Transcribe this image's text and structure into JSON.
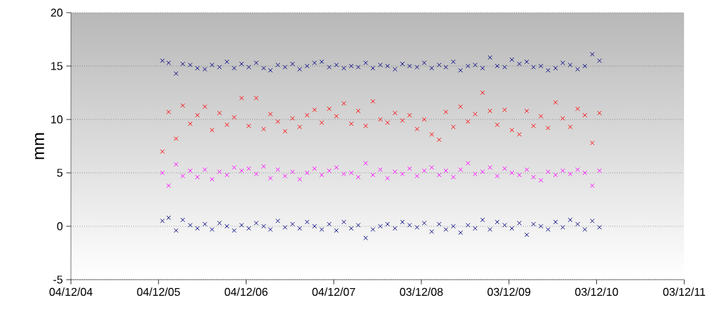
{
  "chart_data": {
    "type": "scatter",
    "ylabel": "mm",
    "marker": "cross",
    "grid": "y",
    "xlim": [
      "2004-12-04",
      "2011-12-03"
    ],
    "xticks": [
      {
        "value": "2004-12-04",
        "label": "04/12/04"
      },
      {
        "value": "2005-12-04",
        "label": "04/12/05"
      },
      {
        "value": "2006-12-04",
        "label": "04/12/06"
      },
      {
        "value": "2007-12-04",
        "label": "04/12/07"
      },
      {
        "value": "2008-12-03",
        "label": "03/12/08"
      },
      {
        "value": "2009-12-03",
        "label": "03/12/09"
      },
      {
        "value": "2010-12-03",
        "label": "03/12/10"
      },
      {
        "value": "2011-12-03",
        "label": "03/12/11"
      }
    ],
    "ylim": [
      -5,
      20
    ],
    "yticks": [
      -5,
      0,
      5,
      10,
      15,
      20
    ],
    "x": [
      "2005-12-20",
      "2006-01-15",
      "2006-02-15",
      "2006-03-15",
      "2006-04-15",
      "2006-05-15",
      "2006-06-15",
      "2006-07-15",
      "2006-08-15",
      "2006-09-15",
      "2006-10-15",
      "2006-11-15",
      "2006-12-15",
      "2007-01-15",
      "2007-02-15",
      "2007-03-15",
      "2007-04-15",
      "2007-05-15",
      "2007-06-15",
      "2007-07-15",
      "2007-08-15",
      "2007-09-15",
      "2007-10-15",
      "2007-11-15",
      "2007-12-15",
      "2008-01-15",
      "2008-02-15",
      "2008-03-15",
      "2008-04-15",
      "2008-05-15",
      "2008-06-15",
      "2008-07-15",
      "2008-08-15",
      "2008-09-15",
      "2008-10-15",
      "2008-11-15",
      "2008-12-15",
      "2009-01-15",
      "2009-02-15",
      "2009-03-15",
      "2009-04-15",
      "2009-05-15",
      "2009-06-15",
      "2009-07-15",
      "2009-08-15",
      "2009-09-15",
      "2009-10-15",
      "2009-11-15",
      "2009-12-15",
      "2010-01-15",
      "2010-02-15",
      "2010-03-15",
      "2010-04-15",
      "2010-05-15",
      "2010-06-15",
      "2010-07-15",
      "2010-08-15",
      "2010-09-15",
      "2010-10-15",
      "2010-11-15",
      "2010-12-15"
    ],
    "series": [
      {
        "color": "#000080",
        "values": [
          15.5,
          15.3,
          14.3,
          15.2,
          15.1,
          14.8,
          14.7,
          15.1,
          14.9,
          15.4,
          14.8,
          15.2,
          14.9,
          15.3,
          14.8,
          14.6,
          15.1,
          14.9,
          15.2,
          14.7,
          15.0,
          15.3,
          15.4,
          14.9,
          15.1,
          14.8,
          15.0,
          14.9,
          15.3,
          14.8,
          15.1,
          15.0,
          14.7,
          15.2,
          15.0,
          14.9,
          15.3,
          14.8,
          15.1,
          14.9,
          15.4,
          14.6,
          15.0,
          15.1,
          14.8,
          15.8,
          15.0,
          14.9,
          15.6,
          15.2,
          15.4,
          14.9,
          15.0,
          14.6,
          14.8,
          15.3,
          15.1,
          14.7,
          15.0,
          16.1,
          15.5
        ]
      },
      {
        "color": "#ff0000",
        "values": [
          7.0,
          10.7,
          8.2,
          11.3,
          9.6,
          10.4,
          11.2,
          9.0,
          10.6,
          9.5,
          10.2,
          12.0,
          9.4,
          12.0,
          9.1,
          10.5,
          9.8,
          8.9,
          10.1,
          9.3,
          10.4,
          10.9,
          9.7,
          11.0,
          10.3,
          11.5,
          9.6,
          10.8,
          9.4,
          11.7,
          10.0,
          9.7,
          10.6,
          9.9,
          10.4,
          9.1,
          10.0,
          8.6,
          8.1,
          10.7,
          9.3,
          11.2,
          9.8,
          10.5,
          12.5,
          10.8,
          9.5,
          10.9,
          9.0,
          8.6,
          10.8,
          9.4,
          10.3,
          9.2,
          11.6,
          10.1,
          9.3,
          11.0,
          10.4,
          7.8,
          10.6
        ]
      },
      {
        "color": "#ff00ff",
        "values": [
          5.0,
          3.8,
          5.8,
          4.7,
          5.2,
          4.6,
          5.3,
          4.4,
          5.1,
          4.8,
          5.5,
          5.2,
          5.4,
          4.9,
          5.6,
          4.5,
          5.3,
          4.7,
          5.1,
          4.4,
          5.0,
          5.4,
          4.8,
          5.2,
          5.5,
          4.9,
          5.0,
          4.6,
          5.9,
          4.8,
          5.3,
          4.5,
          5.1,
          4.9,
          5.4,
          4.7,
          5.2,
          5.5,
          4.8,
          5.2,
          4.6,
          5.3,
          5.9,
          4.9,
          5.1,
          5.5,
          4.7,
          5.4,
          5.0,
          4.8,
          5.3,
          4.6,
          4.3,
          5.1,
          4.8,
          5.2,
          4.9,
          5.3,
          5.0,
          3.8,
          5.2
        ]
      },
      {
        "color": "#000080",
        "values": [
          0.5,
          0.8,
          -0.4,
          0.6,
          0.1,
          -0.2,
          0.2,
          -0.3,
          0.3,
          0.0,
          -0.4,
          0.1,
          -0.2,
          0.3,
          0.0,
          -0.3,
          0.5,
          -0.1,
          0.2,
          -0.2,
          0.4,
          0.0,
          -0.3,
          0.2,
          -0.4,
          0.4,
          -0.2,
          0.1,
          -1.1,
          -0.3,
          0.0,
          0.2,
          -0.2,
          0.4,
          0.1,
          -0.1,
          0.3,
          -0.5,
          0.2,
          -0.3,
          0.0,
          -0.6,
          0.1,
          -0.2,
          0.6,
          -0.3,
          0.4,
          0.1,
          -0.2,
          0.3,
          -0.8,
          0.2,
          0.0,
          -0.3,
          0.4,
          -0.1,
          0.6,
          0.2,
          -0.3,
          0.5,
          -0.1
        ]
      }
    ]
  }
}
